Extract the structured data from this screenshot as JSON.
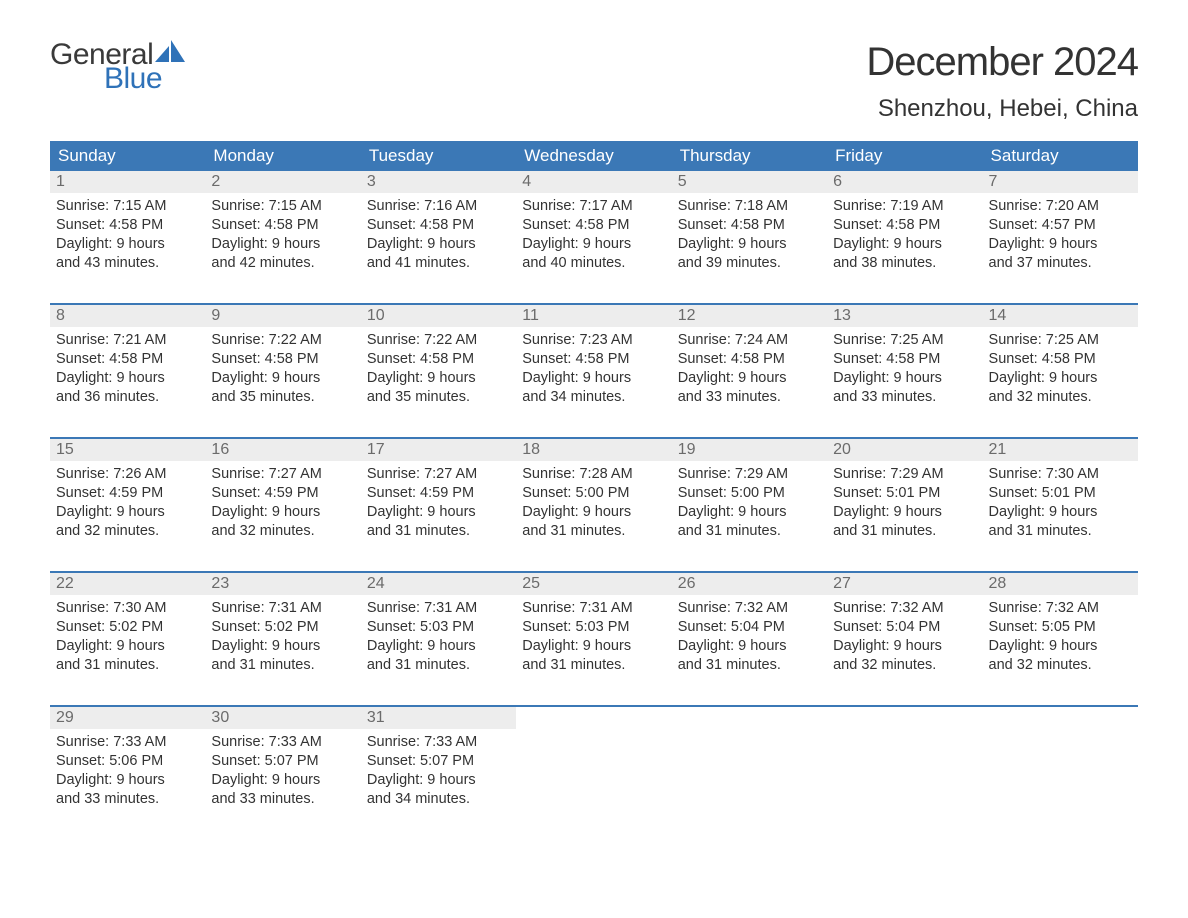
{
  "logo": {
    "word1": "General",
    "word2": "Blue",
    "text_color": "#3a3a3a",
    "blue_color": "#2f72b8"
  },
  "title": "December 2024",
  "location": "Shenzhou, Hebei, China",
  "colors": {
    "header_bg": "#3b78b6",
    "header_text": "#ffffff",
    "daynum_bg": "#ededed",
    "daynum_text": "#6b6b6b",
    "body_text": "#333333",
    "week_border": "#3b78b6",
    "page_bg": "#ffffff"
  },
  "day_headers": [
    "Sunday",
    "Monday",
    "Tuesday",
    "Wednesday",
    "Thursday",
    "Friday",
    "Saturday"
  ],
  "weeks": [
    [
      {
        "n": "1",
        "sunrise": "Sunrise: 7:15 AM",
        "sunset": "Sunset: 4:58 PM",
        "d1": "Daylight: 9 hours",
        "d2": "and 43 minutes."
      },
      {
        "n": "2",
        "sunrise": "Sunrise: 7:15 AM",
        "sunset": "Sunset: 4:58 PM",
        "d1": "Daylight: 9 hours",
        "d2": "and 42 minutes."
      },
      {
        "n": "3",
        "sunrise": "Sunrise: 7:16 AM",
        "sunset": "Sunset: 4:58 PM",
        "d1": "Daylight: 9 hours",
        "d2": "and 41 minutes."
      },
      {
        "n": "4",
        "sunrise": "Sunrise: 7:17 AM",
        "sunset": "Sunset: 4:58 PM",
        "d1": "Daylight: 9 hours",
        "d2": "and 40 minutes."
      },
      {
        "n": "5",
        "sunrise": "Sunrise: 7:18 AM",
        "sunset": "Sunset: 4:58 PM",
        "d1": "Daylight: 9 hours",
        "d2": "and 39 minutes."
      },
      {
        "n": "6",
        "sunrise": "Sunrise: 7:19 AM",
        "sunset": "Sunset: 4:58 PM",
        "d1": "Daylight: 9 hours",
        "d2": "and 38 minutes."
      },
      {
        "n": "7",
        "sunrise": "Sunrise: 7:20 AM",
        "sunset": "Sunset: 4:57 PM",
        "d1": "Daylight: 9 hours",
        "d2": "and 37 minutes."
      }
    ],
    [
      {
        "n": "8",
        "sunrise": "Sunrise: 7:21 AM",
        "sunset": "Sunset: 4:58 PM",
        "d1": "Daylight: 9 hours",
        "d2": "and 36 minutes."
      },
      {
        "n": "9",
        "sunrise": "Sunrise: 7:22 AM",
        "sunset": "Sunset: 4:58 PM",
        "d1": "Daylight: 9 hours",
        "d2": "and 35 minutes."
      },
      {
        "n": "10",
        "sunrise": "Sunrise: 7:22 AM",
        "sunset": "Sunset: 4:58 PM",
        "d1": "Daylight: 9 hours",
        "d2": "and 35 minutes."
      },
      {
        "n": "11",
        "sunrise": "Sunrise: 7:23 AM",
        "sunset": "Sunset: 4:58 PM",
        "d1": "Daylight: 9 hours",
        "d2": "and 34 minutes."
      },
      {
        "n": "12",
        "sunrise": "Sunrise: 7:24 AM",
        "sunset": "Sunset: 4:58 PM",
        "d1": "Daylight: 9 hours",
        "d2": "and 33 minutes."
      },
      {
        "n": "13",
        "sunrise": "Sunrise: 7:25 AM",
        "sunset": "Sunset: 4:58 PM",
        "d1": "Daylight: 9 hours",
        "d2": "and 33 minutes."
      },
      {
        "n": "14",
        "sunrise": "Sunrise: 7:25 AM",
        "sunset": "Sunset: 4:58 PM",
        "d1": "Daylight: 9 hours",
        "d2": "and 32 minutes."
      }
    ],
    [
      {
        "n": "15",
        "sunrise": "Sunrise: 7:26 AM",
        "sunset": "Sunset: 4:59 PM",
        "d1": "Daylight: 9 hours",
        "d2": "and 32 minutes."
      },
      {
        "n": "16",
        "sunrise": "Sunrise: 7:27 AM",
        "sunset": "Sunset: 4:59 PM",
        "d1": "Daylight: 9 hours",
        "d2": "and 32 minutes."
      },
      {
        "n": "17",
        "sunrise": "Sunrise: 7:27 AM",
        "sunset": "Sunset: 4:59 PM",
        "d1": "Daylight: 9 hours",
        "d2": "and 31 minutes."
      },
      {
        "n": "18",
        "sunrise": "Sunrise: 7:28 AM",
        "sunset": "Sunset: 5:00 PM",
        "d1": "Daylight: 9 hours",
        "d2": "and 31 minutes."
      },
      {
        "n": "19",
        "sunrise": "Sunrise: 7:29 AM",
        "sunset": "Sunset: 5:00 PM",
        "d1": "Daylight: 9 hours",
        "d2": "and 31 minutes."
      },
      {
        "n": "20",
        "sunrise": "Sunrise: 7:29 AM",
        "sunset": "Sunset: 5:01 PM",
        "d1": "Daylight: 9 hours",
        "d2": "and 31 minutes."
      },
      {
        "n": "21",
        "sunrise": "Sunrise: 7:30 AM",
        "sunset": "Sunset: 5:01 PM",
        "d1": "Daylight: 9 hours",
        "d2": "and 31 minutes."
      }
    ],
    [
      {
        "n": "22",
        "sunrise": "Sunrise: 7:30 AM",
        "sunset": "Sunset: 5:02 PM",
        "d1": "Daylight: 9 hours",
        "d2": "and 31 minutes."
      },
      {
        "n": "23",
        "sunrise": "Sunrise: 7:31 AM",
        "sunset": "Sunset: 5:02 PM",
        "d1": "Daylight: 9 hours",
        "d2": "and 31 minutes."
      },
      {
        "n": "24",
        "sunrise": "Sunrise: 7:31 AM",
        "sunset": "Sunset: 5:03 PM",
        "d1": "Daylight: 9 hours",
        "d2": "and 31 minutes."
      },
      {
        "n": "25",
        "sunrise": "Sunrise: 7:31 AM",
        "sunset": "Sunset: 5:03 PM",
        "d1": "Daylight: 9 hours",
        "d2": "and 31 minutes."
      },
      {
        "n": "26",
        "sunrise": "Sunrise: 7:32 AM",
        "sunset": "Sunset: 5:04 PM",
        "d1": "Daylight: 9 hours",
        "d2": "and 31 minutes."
      },
      {
        "n": "27",
        "sunrise": "Sunrise: 7:32 AM",
        "sunset": "Sunset: 5:04 PM",
        "d1": "Daylight: 9 hours",
        "d2": "and 32 minutes."
      },
      {
        "n": "28",
        "sunrise": "Sunrise: 7:32 AM",
        "sunset": "Sunset: 5:05 PM",
        "d1": "Daylight: 9 hours",
        "d2": "and 32 minutes."
      }
    ],
    [
      {
        "n": "29",
        "sunrise": "Sunrise: 7:33 AM",
        "sunset": "Sunset: 5:06 PM",
        "d1": "Daylight: 9 hours",
        "d2": "and 33 minutes."
      },
      {
        "n": "30",
        "sunrise": "Sunrise: 7:33 AM",
        "sunset": "Sunset: 5:07 PM",
        "d1": "Daylight: 9 hours",
        "d2": "and 33 minutes."
      },
      {
        "n": "31",
        "sunrise": "Sunrise: 7:33 AM",
        "sunset": "Sunset: 5:07 PM",
        "d1": "Daylight: 9 hours",
        "d2": "and 34 minutes."
      },
      null,
      null,
      null,
      null
    ]
  ]
}
